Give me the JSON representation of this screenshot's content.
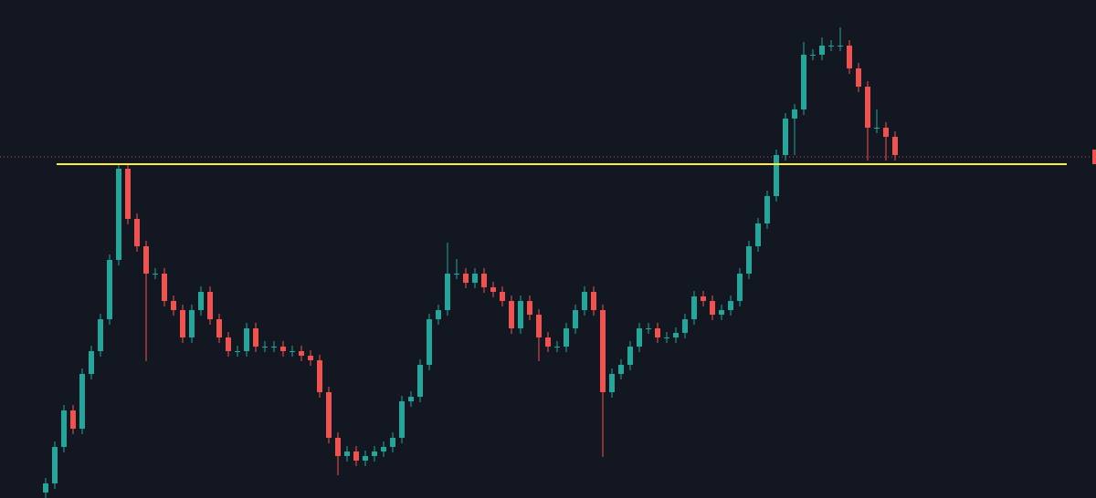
{
  "chart_data": {
    "type": "candlestick",
    "ylim": [
      0,
      546
    ],
    "up_color": "#26a69a",
    "down_color": "#ef5350",
    "open": [
      6,
      16,
      56,
      96,
      76,
      136,
      161,
      196,
      261,
      361,
      306,
      276,
      246,
      246,
      216,
      206,
      176,
      206,
      226,
      196,
      176,
      161,
      161,
      186,
      166,
      166,
      166,
      161,
      161,
      156,
      151,
      116,
      66,
      46,
      51,
      41,
      46,
      51,
      56,
      66,
      106,
      111,
      146,
      196,
      206,
      246,
      246,
      236,
      246,
      231,
      226,
      216,
      186,
      216,
      201,
      176,
      166,
      166,
      186,
      206,
      226,
      206,
      116,
      136,
      146,
      166,
      186,
      186,
      176,
      176,
      181,
      196,
      221,
      216,
      201,
      206,
      216,
      246,
      276,
      301,
      331,
      376,
      416,
      426,
      486,
      486,
      496,
      496,
      496,
      471,
      451,
      406,
      406,
      396
    ],
    "high": [
      22,
      62,
      102,
      102,
      142,
      167,
      202,
      267,
      366,
      367,
      312,
      282,
      252,
      252,
      222,
      212,
      212,
      232,
      232,
      202,
      182,
      167,
      192,
      192,
      172,
      172,
      172,
      167,
      167,
      162,
      157,
      122,
      72,
      57,
      57,
      52,
      57,
      62,
      72,
      112,
      117,
      152,
      202,
      212,
      280,
      262,
      252,
      252,
      252,
      237,
      232,
      222,
      222,
      222,
      207,
      182,
      172,
      192,
      212,
      232,
      232,
      212,
      142,
      152,
      172,
      192,
      192,
      192,
      182,
      187,
      202,
      227,
      227,
      222,
      212,
      222,
      252,
      282,
      307,
      337,
      382,
      422,
      432,
      500,
      492,
      505,
      502,
      516,
      502,
      477,
      457,
      426,
      412,
      402
    ],
    "low": [
      0,
      10,
      50,
      70,
      70,
      130,
      155,
      190,
      255,
      300,
      270,
      150,
      240,
      210,
      200,
      170,
      170,
      200,
      190,
      170,
      155,
      155,
      155,
      160,
      160,
      160,
      155,
      155,
      150,
      145,
      110,
      60,
      25,
      40,
      35,
      35,
      40,
      45,
      50,
      60,
      100,
      105,
      140,
      190,
      200,
      240,
      230,
      230,
      225,
      220,
      210,
      180,
      180,
      195,
      150,
      160,
      160,
      160,
      180,
      200,
      200,
      45,
      110,
      130,
      140,
      160,
      180,
      170,
      170,
      170,
      175,
      190,
      210,
      195,
      195,
      200,
      210,
      240,
      270,
      295,
      325,
      370,
      376,
      420,
      480,
      480,
      490,
      490,
      465,
      445,
      370,
      400,
      370,
      370
    ],
    "close": [
      16,
      56,
      96,
      76,
      136,
      161,
      196,
      261,
      361,
      306,
      276,
      246,
      246,
      216,
      206,
      176,
      206,
      226,
      196,
      176,
      161,
      161,
      186,
      166,
      166,
      166,
      161,
      161,
      156,
      151,
      116,
      66,
      46,
      51,
      41,
      46,
      51,
      56,
      66,
      106,
      111,
      146,
      196,
      206,
      246,
      246,
      236,
      246,
      231,
      226,
      216,
      186,
      216,
      201,
      176,
      166,
      166,
      186,
      206,
      226,
      206,
      116,
      136,
      146,
      166,
      186,
      186,
      176,
      176,
      181,
      196,
      221,
      216,
      201,
      206,
      216,
      246,
      276,
      301,
      331,
      376,
      416,
      426,
      486,
      486,
      496,
      496,
      496,
      471,
      451,
      406,
      406,
      396,
      376
    ],
    "level": {
      "value": 366,
      "color": "#ffeb3b"
    },
    "price_line": {
      "value": 374,
      "color": "#ef5350"
    }
  }
}
